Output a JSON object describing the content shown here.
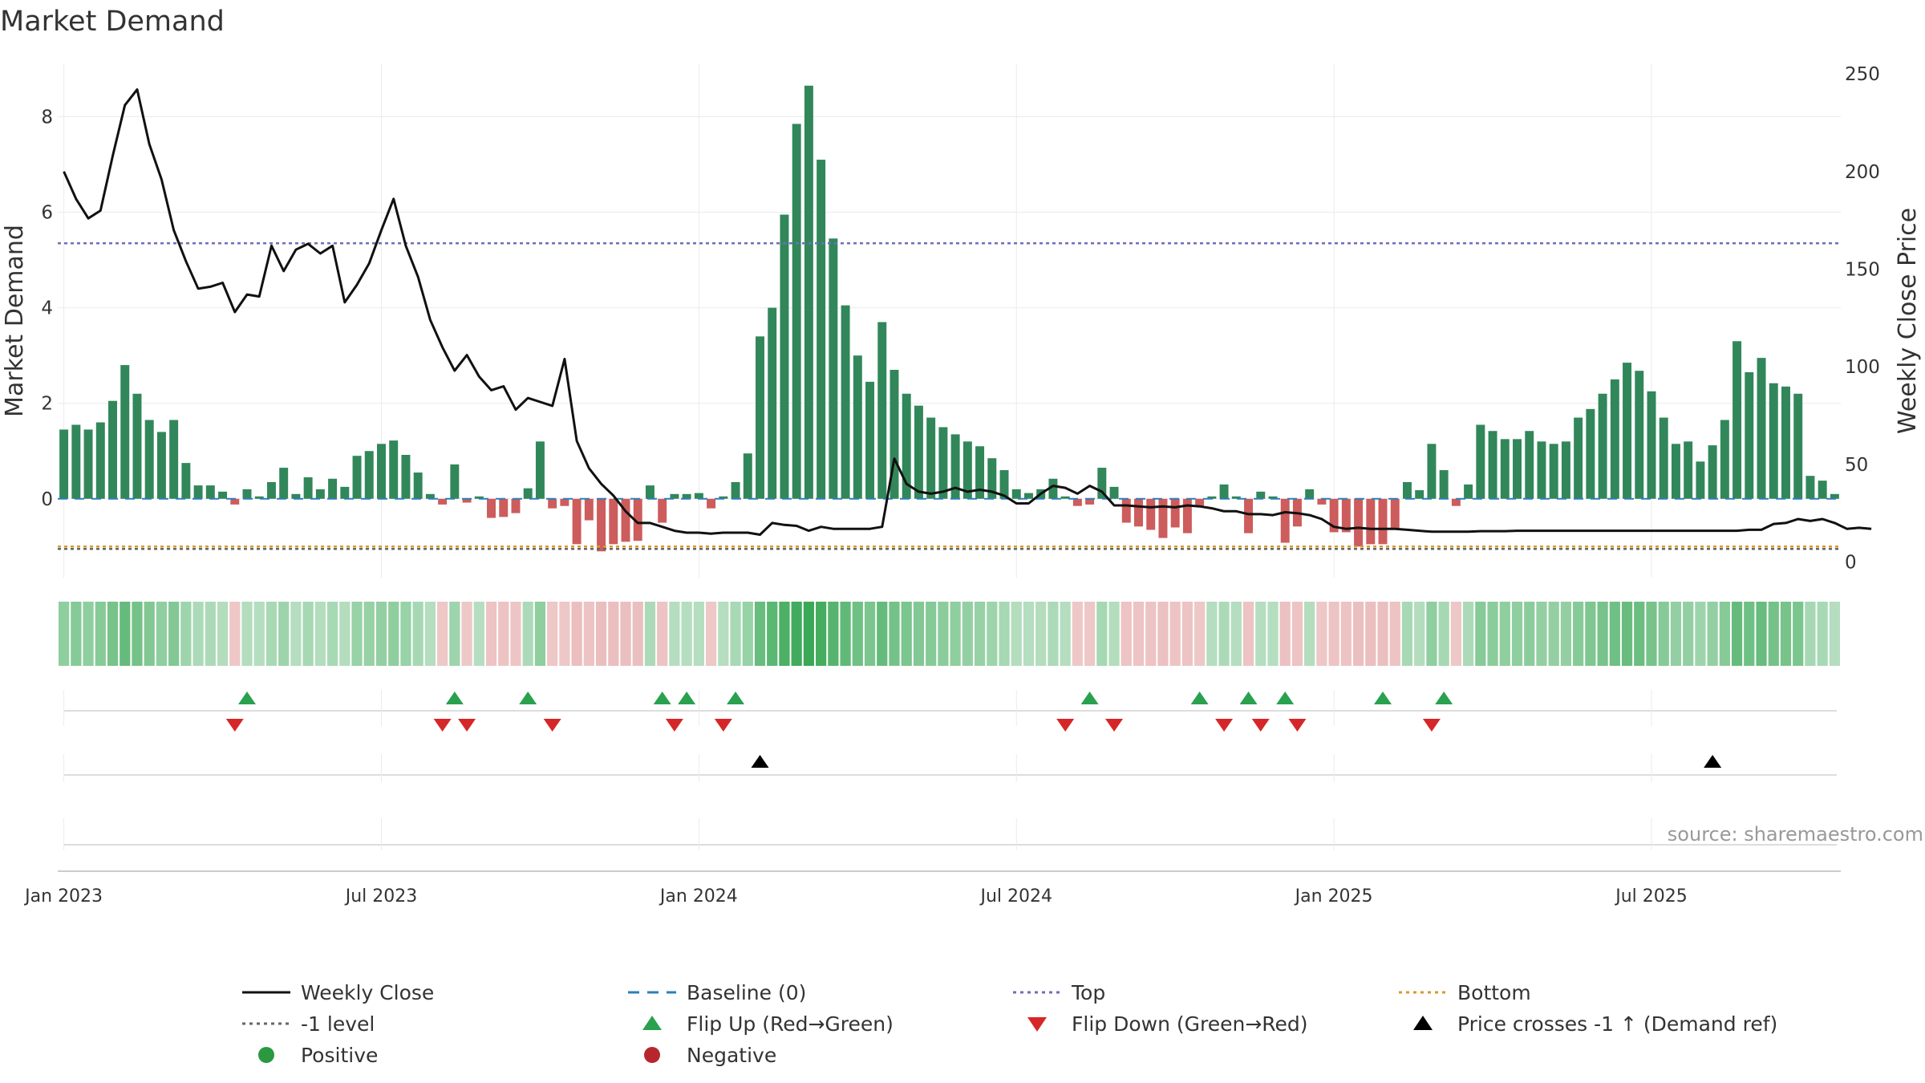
{
  "chart_data": {
    "type": "bar",
    "title": "Market Demand",
    "ylabel": "Market Demand",
    "y2label": "Weekly Close Price",
    "source": "source: sharemaestro.com",
    "ylim": [
      -1.65,
      9.1
    ],
    "y2lim": [
      -8.0,
      255.0
    ],
    "yticks": [
      0,
      2,
      4,
      6,
      8
    ],
    "y2ticks": [
      0,
      50,
      100,
      150,
      200,
      250
    ],
    "top_level": 5.35,
    "bottom_level": -1.0,
    "minus_one_level": -1.05,
    "x_ticks": [
      {
        "label": "Jan 2023",
        "week": 1
      },
      {
        "label": "Jul 2023",
        "week": 27
      },
      {
        "label": "Jan 2024",
        "week": 53
      },
      {
        "label": "Jul 2024",
        "week": 79
      },
      {
        "label": "Jan 2025",
        "week": 105
      },
      {
        "label": "Jul 2025",
        "week": 131
      }
    ],
    "demand": [
      1.45,
      1.55,
      1.45,
      1.6,
      2.05,
      2.8,
      2.2,
      1.65,
      1.4,
      1.65,
      0.75,
      0.28,
      0.28,
      0.15,
      -0.12,
      0.2,
      0.05,
      0.35,
      0.65,
      0.1,
      0.45,
      0.2,
      0.42,
      0.25,
      0.9,
      1.0,
      1.15,
      1.22,
      0.92,
      0.55,
      0.1,
      -0.12,
      0.72,
      -0.08,
      0.05,
      -0.4,
      -0.38,
      -0.3,
      0.22,
      1.2,
      -0.2,
      -0.15,
      -0.95,
      -0.45,
      -1.1,
      -0.95,
      -0.9,
      -0.88,
      0.28,
      -0.5,
      0.1,
      0.1,
      0.12,
      -0.2,
      0.05,
      0.35,
      0.95,
      3.4,
      4.0,
      5.95,
      7.85,
      8.65,
      7.1,
      5.45,
      4.05,
      3.0,
      2.45,
      3.7,
      2.7,
      2.2,
      1.95,
      1.7,
      1.5,
      1.35,
      1.2,
      1.1,
      0.85,
      0.6,
      0.2,
      0.12,
      0.2,
      0.42,
      0.05,
      -0.15,
      -0.12,
      0.65,
      0.25,
      -0.5,
      -0.58,
      -0.65,
      -0.82,
      -0.6,
      -0.72,
      -0.15,
      0.05,
      0.3,
      0.05,
      -0.72,
      0.15,
      0.05,
      -0.92,
      -0.58,
      0.2,
      -0.12,
      -0.7,
      -0.7,
      -1.0,
      -0.95,
      -0.95,
      -0.62,
      0.35,
      0.18,
      1.15,
      0.6,
      -0.15,
      0.3,
      1.55,
      1.42,
      1.25,
      1.25,
      1.42,
      1.2,
      1.15,
      1.2,
      1.7,
      1.88,
      2.2,
      2.5,
      2.85,
      2.68,
      2.25,
      1.7,
      1.15,
      1.2,
      0.78,
      1.12,
      1.65,
      3.3,
      2.65,
      2.95,
      2.42,
      2.35,
      2.2,
      0.48,
      0.38,
      0.1
    ],
    "price": [
      200,
      186,
      176,
      180,
      208,
      234,
      242,
      214,
      196,
      170,
      154,
      140,
      141,
      143,
      128,
      137,
      136,
      162,
      149,
      160,
      163,
      158,
      162,
      133,
      142,
      153,
      170,
      186,
      162,
      146,
      124,
      110,
      98,
      106,
      95,
      88,
      90,
      78,
      84,
      82,
      80,
      104,
      62,
      48,
      40,
      34,
      26,
      20,
      20,
      18,
      16,
      15,
      15,
      14.5,
      15,
      15,
      15,
      14,
      20,
      19,
      18.5,
      16,
      18,
      17,
      17,
      17,
      17,
      18,
      53,
      40,
      36,
      35,
      36,
      38,
      36,
      37,
      36,
      34,
      30,
      30,
      35,
      39,
      38,
      35,
      39,
      36,
      29,
      29,
      28.5,
      28,
      28.5,
      28,
      29,
      28.5,
      27.5,
      26,
      26,
      24.5,
      24.5,
      24,
      25.5,
      25,
      24,
      22,
      18,
      17,
      17.5,
      17,
      17,
      17,
      16.5,
      16,
      15.5,
      15.5,
      15.5,
      15.5,
      15.8,
      15.8,
      15.8,
      16,
      16,
      16,
      16,
      16,
      16,
      16,
      16,
      16,
      16,
      16,
      16,
      16,
      16,
      16,
      16,
      16,
      16,
      16,
      16.5,
      16.5,
      19.5,
      20,
      22,
      21,
      22,
      20,
      17,
      17.5,
      17
    ],
    "heatmap_intensity": [
      0.45,
      0.5,
      0.45,
      0.5,
      0.6,
      0.72,
      0.62,
      0.52,
      0.45,
      0.52,
      0.35,
      0.25,
      0.25,
      0.22,
      -0.3,
      0.22,
      0.2,
      0.28,
      0.35,
      0.2,
      0.3,
      0.22,
      0.28,
      0.22,
      0.38,
      0.4,
      0.42,
      0.45,
      0.38,
      0.3,
      0.2,
      -0.3,
      0.35,
      -0.3,
      0.2,
      -0.35,
      -0.35,
      -0.32,
      0.25,
      0.45,
      -0.3,
      -0.3,
      -0.4,
      -0.35,
      -0.42,
      -0.4,
      -0.4,
      -0.4,
      0.25,
      -0.35,
      0.2,
      0.2,
      0.2,
      -0.3,
      0.2,
      0.28,
      0.38,
      0.7,
      0.78,
      0.88,
      0.95,
      1.0,
      0.92,
      0.82,
      0.75,
      0.65,
      0.58,
      0.72,
      0.62,
      0.58,
      0.52,
      0.5,
      0.48,
      0.45,
      0.42,
      0.4,
      0.35,
      0.3,
      0.22,
      0.2,
      0.22,
      0.25,
      0.2,
      -0.3,
      -0.3,
      0.3,
      0.22,
      -0.35,
      -0.35,
      -0.35,
      -0.38,
      -0.35,
      -0.35,
      -0.3,
      0.2,
      0.25,
      0.2,
      -0.35,
      0.2,
      0.2,
      -0.38,
      -0.35,
      0.22,
      -0.3,
      -0.35,
      -0.35,
      -0.4,
      -0.4,
      -0.4,
      -0.35,
      0.28,
      0.22,
      0.45,
      0.3,
      -0.3,
      0.25,
      0.5,
      0.48,
      0.45,
      0.45,
      0.48,
      0.42,
      0.42,
      0.42,
      0.5,
      0.55,
      0.6,
      0.65,
      0.7,
      0.68,
      0.6,
      0.5,
      0.42,
      0.42,
      0.35,
      0.42,
      0.5,
      0.72,
      0.65,
      0.7,
      0.62,
      0.6,
      0.58,
      0.3,
      0.28,
      0.2
    ],
    "flip_up_weeks": [
      16,
      33,
      39,
      50,
      52,
      56,
      85,
      94,
      98,
      101,
      109,
      114
    ],
    "flip_down_weeks": [
      15,
      32,
      34,
      41,
      51,
      55,
      83,
      87,
      96,
      99,
      102,
      113
    ],
    "price_cross_weeks": [
      58,
      136
    ],
    "legend": [
      {
        "label": "Weekly Close",
        "symbol": "line-solid",
        "color": "#111111"
      },
      {
        "label": "Baseline (0)",
        "symbol": "line-dash",
        "color": "#2c7fb8"
      },
      {
        "label": "Top",
        "symbol": "line-dot",
        "color": "#6f6fb8"
      },
      {
        "label": "Bottom",
        "symbol": "line-dot",
        "color": "#d99a2b"
      },
      {
        "label": "-1 level",
        "symbol": "line-dot",
        "color": "#666666"
      },
      {
        "label": "Flip Up (Red→Green)",
        "symbol": "triangle-up",
        "color": "#2aa14f"
      },
      {
        "label": "Flip Down (Green→Red)",
        "symbol": "triangle-down",
        "color": "#d62728"
      },
      {
        "label": "Price crosses -1 ↑ (Demand ref)",
        "symbol": "triangle-up",
        "color": "#000000"
      },
      {
        "label": "Positive",
        "symbol": "circle",
        "color": "#2a9940"
      },
      {
        "label": "Negative",
        "symbol": "circle",
        "color": "#b8262d"
      }
    ],
    "colors": {
      "positive_bar": "#31875a",
      "negative_bar": "#cd5c5c",
      "heat_positive": "#3aa856",
      "heat_negative": "#e8b4b4",
      "price_line": "#111111",
      "top_line": "#6f6fb8",
      "bottom_line": "#d99a2b",
      "baseline": "#2c7fb8",
      "grid": "#ebebeb",
      "axis_text": "#333333"
    }
  }
}
